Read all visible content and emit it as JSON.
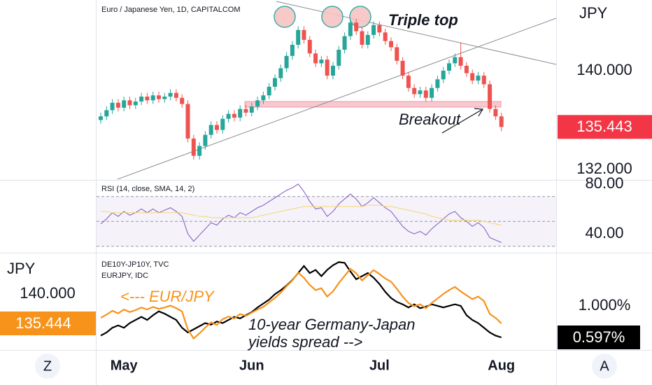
{
  "chart_data": [
    {
      "type": "candlestick",
      "title": "Euro / Japanese Yen, 1D, CAPITALCOM",
      "y_label": "JPY",
      "up_color": "#26a69a",
      "down_color": "#ef5350",
      "open": [
        136.0,
        136.3,
        136.8,
        137.4,
        137.0,
        137.6,
        137.2,
        137.5,
        137.9,
        137.6,
        138.0,
        137.7,
        137.9,
        138.2,
        137.8,
        137.3,
        134.5,
        133.1,
        133.9,
        134.8,
        135.6,
        135.2,
        136.1,
        136.5,
        136.2,
        136.9,
        136.6,
        137.1,
        137.6,
        138.0,
        138.7,
        139.4,
        140.2,
        141.2,
        142.1,
        143.3,
        142.5,
        141.4,
        140.6,
        140.9,
        139.6,
        140.4,
        141.7,
        142.8,
        143.9,
        143.2,
        142.1,
        142.9,
        143.7,
        143.1,
        142.4,
        141.9,
        140.8,
        139.6,
        138.6,
        138.1,
        138.4,
        137.8,
        138.6,
        139.3,
        140.0,
        140.6,
        141.1,
        140.4,
        139.8,
        139.2,
        139.6,
        138.9,
        136.9,
        136.3
      ],
      "high": [
        136.6,
        137.1,
        137.7,
        137.7,
        137.9,
        137.9,
        137.8,
        138.2,
        138.2,
        138.3,
        138.3,
        138.2,
        138.5,
        138.5,
        138.1,
        137.6,
        134.8,
        134.2,
        135.1,
        135.9,
        135.9,
        136.4,
        136.8,
        136.8,
        137.2,
        137.2,
        137.4,
        137.9,
        138.3,
        139.0,
        139.7,
        140.5,
        141.5,
        142.4,
        143.6,
        143.6,
        142.8,
        141.7,
        141.2,
        141.2,
        140.7,
        142.0,
        143.1,
        144.2,
        144.2,
        143.5,
        143.2,
        144.0,
        144.0,
        143.4,
        142.7,
        142.2,
        141.1,
        139.9,
        138.9,
        138.7,
        138.7,
        138.9,
        139.6,
        140.3,
        140.9,
        141.4,
        142.3,
        140.7,
        140.1,
        139.9,
        139.9,
        139.2,
        137.2,
        136.6
      ],
      "low": [
        135.7,
        136.0,
        136.5,
        136.7,
        136.7,
        136.9,
        136.9,
        137.2,
        137.3,
        137.3,
        137.4,
        137.4,
        137.6,
        137.5,
        137.0,
        134.2,
        132.8,
        132.8,
        133.6,
        134.5,
        134.9,
        134.9,
        135.8,
        135.9,
        135.9,
        136.3,
        136.3,
        136.8,
        137.3,
        137.7,
        138.4,
        139.1,
        139.9,
        140.9,
        141.8,
        142.2,
        141.1,
        140.3,
        140.3,
        139.3,
        139.3,
        140.1,
        141.4,
        142.5,
        142.9,
        141.8,
        141.8,
        142.6,
        142.8,
        142.1,
        141.6,
        140.5,
        139.3,
        138.3,
        137.8,
        137.8,
        137.5,
        137.5,
        138.3,
        139.0,
        139.7,
        140.3,
        140.1,
        139.5,
        138.9,
        138.9,
        138.6,
        136.6,
        136.0,
        135.1
      ],
      "close": [
        136.3,
        136.8,
        137.4,
        137.0,
        137.6,
        137.2,
        137.5,
        137.9,
        137.6,
        138.0,
        137.7,
        137.9,
        138.2,
        137.8,
        137.3,
        134.5,
        133.1,
        133.9,
        134.8,
        135.6,
        135.2,
        136.1,
        136.5,
        136.2,
        136.9,
        136.6,
        137.1,
        137.6,
        138.0,
        138.7,
        139.4,
        140.2,
        141.2,
        142.1,
        143.3,
        142.5,
        141.4,
        140.6,
        140.9,
        139.6,
        140.4,
        141.7,
        142.8,
        143.9,
        143.2,
        142.1,
        142.9,
        143.7,
        143.1,
        142.4,
        141.9,
        140.8,
        139.6,
        138.6,
        138.1,
        138.4,
        137.8,
        138.6,
        139.3,
        140.0,
        140.6,
        141.1,
        140.4,
        139.8,
        139.2,
        139.6,
        138.9,
        136.9,
        136.3,
        135.443
      ],
      "last_label": "135.443",
      "last_color": "#f23645",
      "ylim": [
        131.15,
        145.73
      ],
      "yticks": [
        {
          "value": 140,
          "label": "140.000"
        },
        {
          "value": 132,
          "label": "132.000"
        }
      ],
      "xticks": [
        {
          "value": 4,
          "label": "May"
        },
        {
          "value": 26,
          "label": "Jun"
        },
        {
          "value": 48,
          "label": "Jul"
        },
        {
          "value": 69,
          "label": "Aug"
        }
      ],
      "annotations": [
        "Triple top",
        "Breakout"
      ]
    },
    {
      "type": "line",
      "title": "RSI (14, close, SMA, 14, 2)",
      "series": [
        {
          "color": "#7e57c2",
          "values": [
            48,
            52,
            57,
            54,
            58,
            55,
            57,
            60,
            57,
            60,
            57,
            59,
            61,
            58,
            54,
            40,
            34,
            39,
            44,
            49,
            47,
            52,
            55,
            53,
            57,
            55,
            58,
            61,
            63,
            66,
            69,
            72,
            75,
            77,
            80,
            74,
            66,
            60,
            61,
            54,
            58,
            64,
            68,
            72,
            68,
            62,
            65,
            69,
            65,
            61,
            58,
            52,
            46,
            42,
            40,
            42,
            39,
            44,
            48,
            52,
            56,
            58,
            53,
            50,
            46,
            49,
            45,
            37,
            35,
            33
          ]
        },
        {
          "color": "#f5d76e",
          "values": [
            58,
            58,
            57,
            57,
            57,
            57,
            57,
            57,
            57,
            57,
            57,
            57,
            57,
            57,
            57,
            56,
            55,
            54,
            54,
            53,
            53,
            53,
            53,
            53,
            53,
            53,
            53,
            54,
            55,
            56,
            57,
            58,
            59,
            60,
            61,
            62,
            62,
            62,
            62,
            62,
            62,
            62,
            62,
            62,
            62,
            62,
            63,
            63,
            63,
            62,
            62,
            61,
            60,
            59,
            58,
            57,
            56,
            54,
            53,
            52,
            51,
            51,
            51,
            51,
            51,
            51,
            50,
            49,
            48,
            47
          ]
        }
      ],
      "levels": [
        30,
        50,
        70
      ],
      "ylim": [
        25.4,
        82.8
      ],
      "yticks": [
        {
          "value": 80,
          "label": "80.00"
        },
        {
          "value": 40,
          "label": "40.00"
        }
      ]
    },
    {
      "type": "line",
      "y_label": "JPY",
      "series": [
        {
          "name": "DE10Y-JP10Y, TVC",
          "axis": "y2",
          "color": "#000000",
          "last_label": "0.597%",
          "values": [
            0.62,
            0.66,
            0.72,
            0.75,
            0.72,
            0.78,
            0.82,
            0.86,
            0.82,
            0.88,
            0.93,
            0.9,
            0.86,
            0.82,
            0.72,
            0.66,
            0.7,
            0.74,
            0.78,
            0.76,
            0.8,
            0.78,
            0.82,
            0.86,
            0.84,
            0.88,
            0.92,
            0.98,
            1.03,
            1.08,
            1.15,
            1.2,
            1.26,
            1.33,
            1.42,
            1.51,
            1.42,
            1.46,
            1.38,
            1.46,
            1.52,
            1.56,
            1.55,
            1.44,
            1.34,
            1.38,
            1.42,
            1.36,
            1.28,
            1.18,
            1.1,
            1.05,
            1.02,
            0.98,
            1.02,
            0.97,
            0.99,
            1.02,
            1.0,
            0.98,
            1.0,
            1.02,
            1.0,
            0.88,
            0.82,
            0.78,
            0.72,
            0.66,
            0.62,
            0.597
          ]
        },
        {
          "name": "EURJPY, IDC",
          "color": "#f7931a",
          "last_label": "135.444",
          "values": [
            136.3,
            136.8,
            137.4,
            137.0,
            137.6,
            137.2,
            137.5,
            137.9,
            137.6,
            138.0,
            137.7,
            137.9,
            138.2,
            137.8,
            137.3,
            134.5,
            133.1,
            133.9,
            134.8,
            135.6,
            135.2,
            136.1,
            136.5,
            136.2,
            136.9,
            136.6,
            137.1,
            137.6,
            138.0,
            138.7,
            139.4,
            140.2,
            141.2,
            142.1,
            143.3,
            142.5,
            141.4,
            140.6,
            140.9,
            139.6,
            140.4,
            141.7,
            142.8,
            143.9,
            143.2,
            142.1,
            142.9,
            143.7,
            143.1,
            142.4,
            141.9,
            140.8,
            139.6,
            138.6,
            138.1,
            138.4,
            137.8,
            138.6,
            139.3,
            140.0,
            140.6,
            141.1,
            140.4,
            139.8,
            139.2,
            139.6,
            138.9,
            136.9,
            136.3,
            135.444
          ]
        }
      ],
      "ylim": [
        131.32,
        146.29
      ],
      "yticks": [
        {
          "value": 140,
          "label": "140.000"
        }
      ],
      "y2lim": [
        0.436,
        1.671
      ],
      "y2ticks": [
        {
          "value": 1,
          "label": "1.000%"
        }
      ],
      "annotations": [
        "<--- EUR/JPY",
        "10-year Germany-Japan",
        "yields spread -->"
      ]
    }
  ],
  "controls": {
    "left_button": "Z",
    "right_button": "A"
  }
}
